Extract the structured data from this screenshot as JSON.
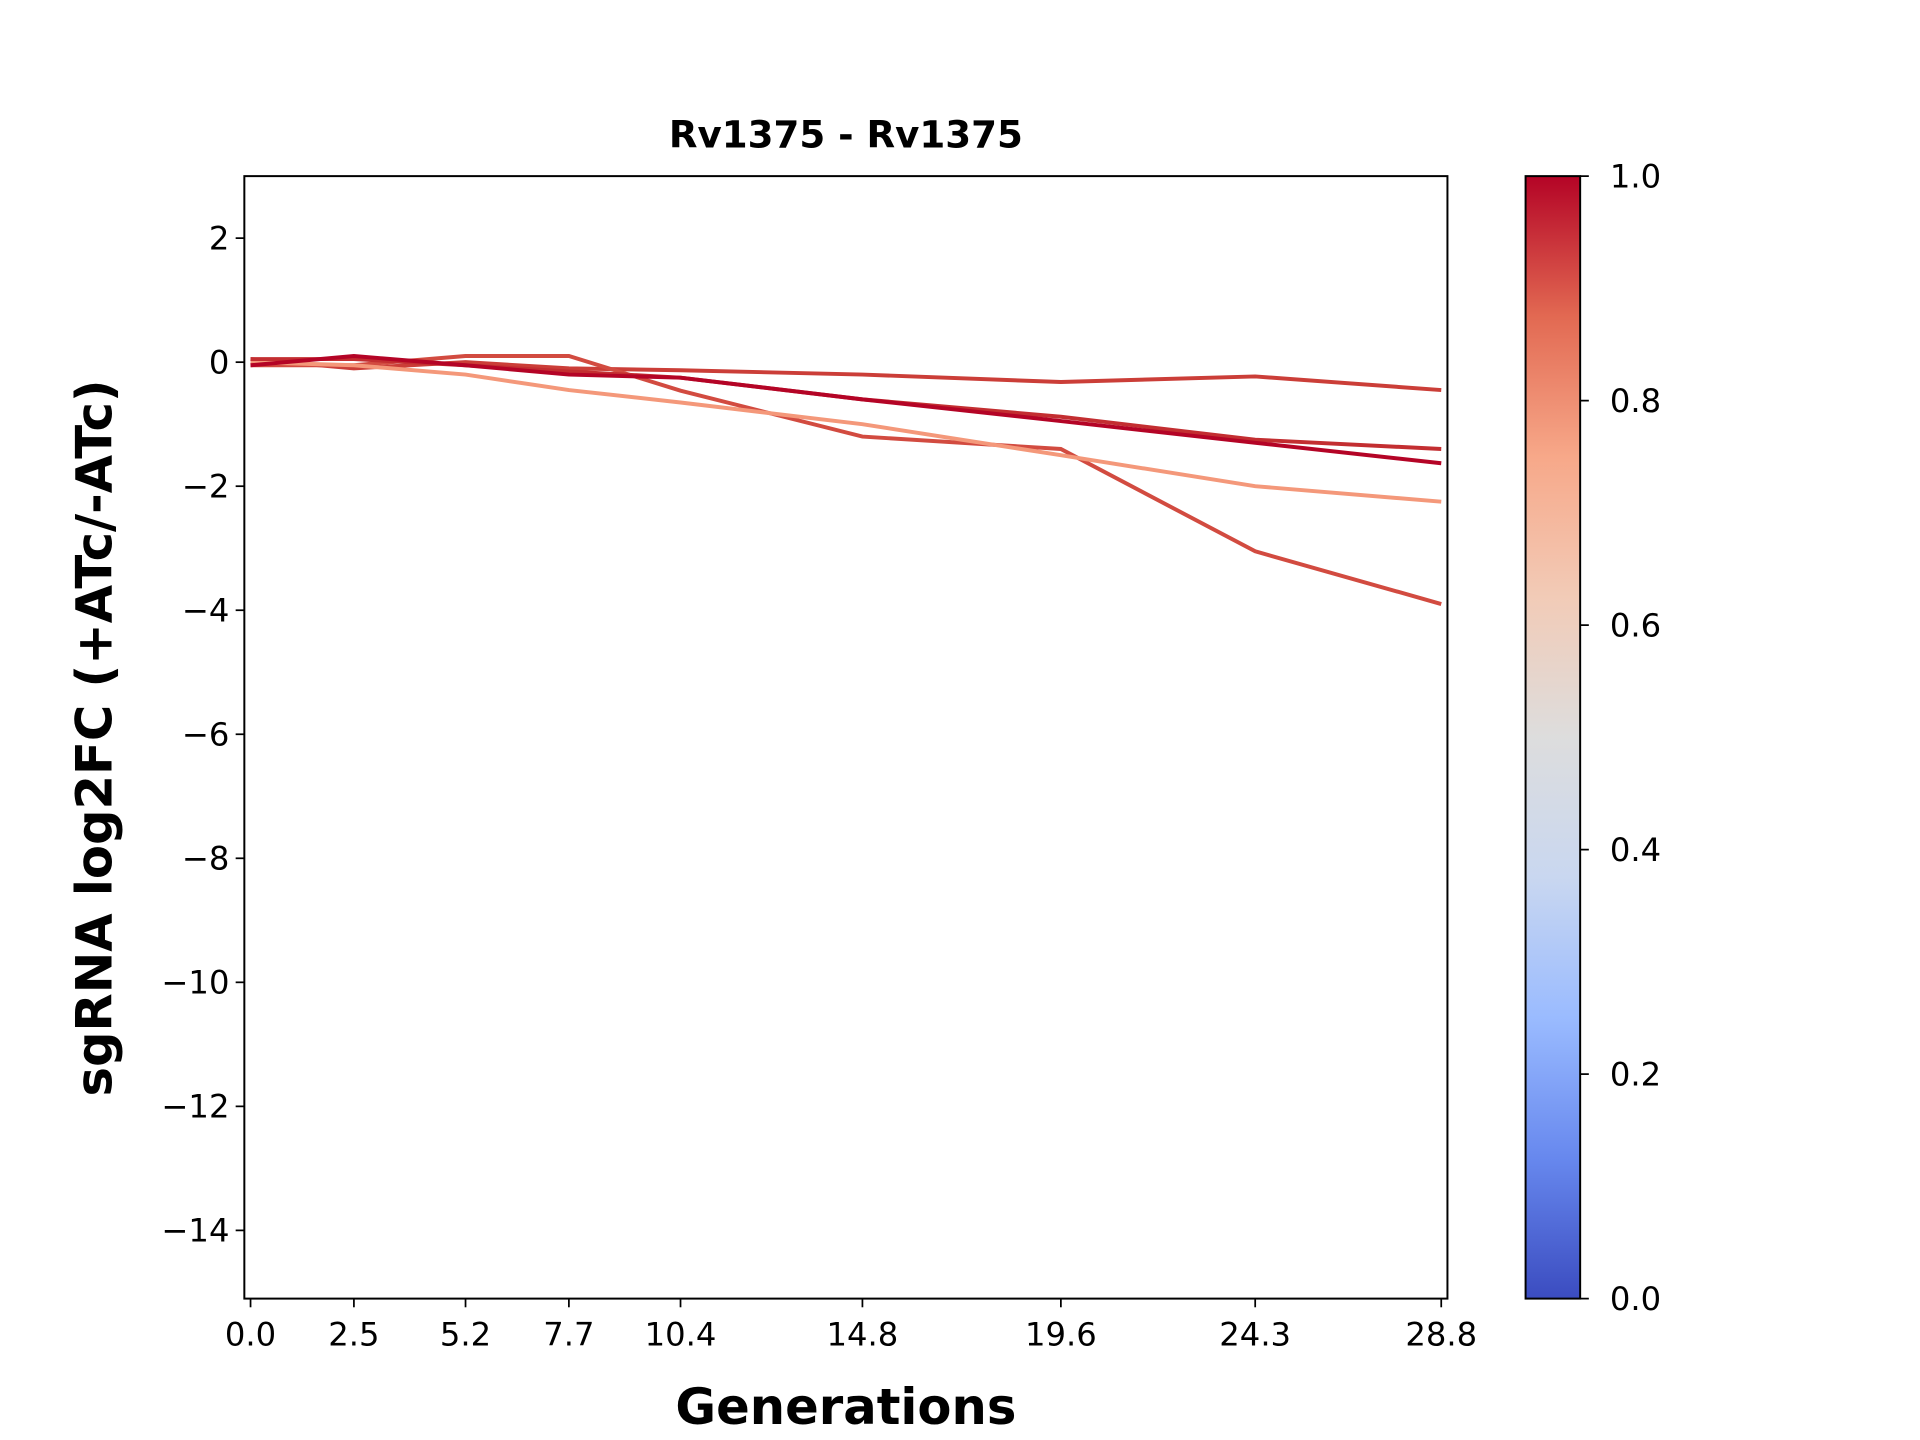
{
  "chart_data": {
    "type": "line",
    "title": "Rv1375 - Rv1375",
    "xlabel": "Generations",
    "ylabel": "sgRNA log2FC (+ATc/-ATc)",
    "x": [
      0.0,
      2.5,
      5.2,
      7.7,
      10.4,
      14.8,
      19.6,
      24.3,
      28.8
    ],
    "xtick_labels": [
      "0.0",
      "2.5",
      "5.2",
      "7.7",
      "10.4",
      "14.8",
      "19.6",
      "24.3",
      "28.8"
    ],
    "yticks": [
      2,
      0,
      -2,
      -4,
      -6,
      -8,
      -10,
      -12,
      -14
    ],
    "ytick_labels": [
      "2",
      "0",
      "−2",
      "−4",
      "−6",
      "−8",
      "−10",
      "−12",
      "−14"
    ],
    "xlim": [
      -0.15,
      28.95
    ],
    "ylim": [
      -15.1,
      3.0
    ],
    "grid": false,
    "series": [
      {
        "color": "#cb3e38",
        "values": [
          0.05,
          -0.1,
          0.0,
          -0.1,
          -0.13,
          -0.2,
          -0.32,
          -0.23,
          -0.45
        ]
      },
      {
        "color": "#d24b40",
        "values": [
          -0.05,
          -0.05,
          0.1,
          0.1,
          -0.46,
          -1.2,
          -1.4,
          -3.05,
          -3.9
        ]
      },
      {
        "color": "#f4987a",
        "values": [
          0.0,
          -0.05,
          -0.2,
          -0.45,
          -0.65,
          -1.0,
          -1.5,
          -2.0,
          -2.25
        ]
      },
      {
        "color": "#c32e31",
        "values": [
          0.05,
          0.05,
          -0.05,
          -0.15,
          -0.25,
          -0.6,
          -0.88,
          -1.25,
          -1.4
        ]
      },
      {
        "color": "#b40426",
        "values": [
          -0.05,
          0.1,
          -0.05,
          -0.2,
          -0.25,
          -0.6,
          -0.95,
          -1.3,
          -1.63
        ]
      }
    ],
    "colorbar": {
      "colormap": "coolwarm",
      "range": [
        0.0,
        1.0
      ],
      "ticks": [
        "0.0",
        "0.2",
        "0.4",
        "0.6",
        "0.8",
        "1.0"
      ],
      "colors": [
        "#3b4cc0",
        "#6788ee",
        "#9abbff",
        "#c9d7f0",
        "#dddddd",
        "#f2cbb7",
        "#f7a889",
        "#e26952",
        "#b40426"
      ]
    }
  }
}
